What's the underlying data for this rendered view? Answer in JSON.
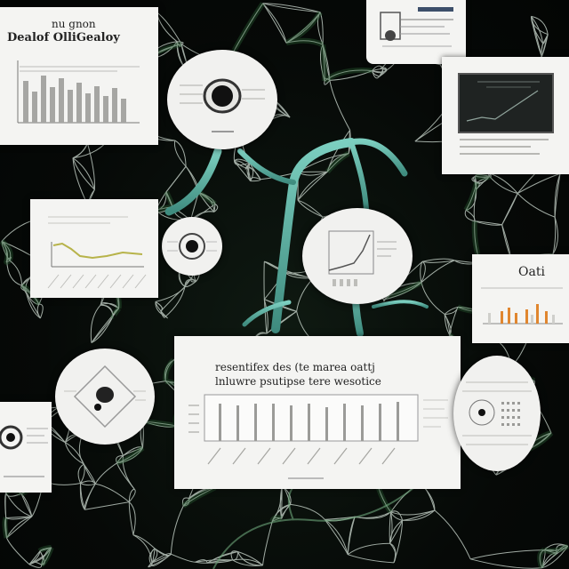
{
  "texts": {
    "card_top_left_title_1": "nu gnon",
    "card_top_left_title_2": "Dealof OlliGealoy",
    "card_bottom_center_title_1": "resentifex des (te marea oattj",
    "card_bottom_center_title_2": "lnluwre psutipse tere wesotice",
    "card_right_mid_title": "Oati"
  },
  "colors": {
    "background": "#050807",
    "vessel": "#5fb3a6",
    "network": "#d9e4dc",
    "card": "#f4f4f2",
    "bar": "#9b9b98",
    "accent_orange": "#e0862f",
    "accent_olive": "#b7b34a",
    "dark_panel": "#1f2322"
  }
}
